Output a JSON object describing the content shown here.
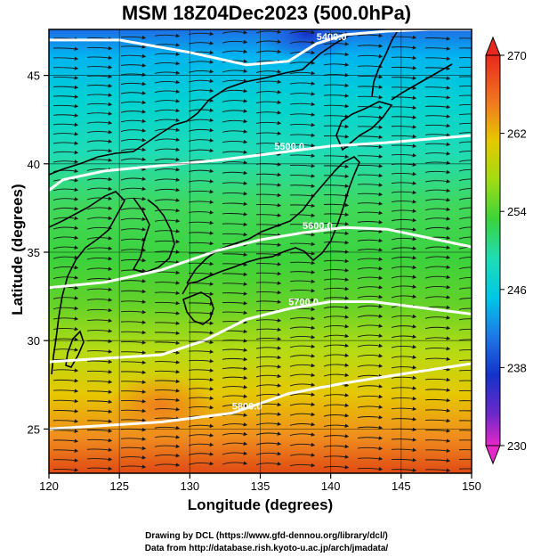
{
  "title": "MSM 18Z04Dec2023 (500.0hPa)",
  "x_axis": {
    "label": "Longitude (degrees)",
    "ticks": [
      "120",
      "125",
      "130",
      "135",
      "140",
      "145",
      "150"
    ]
  },
  "y_axis": {
    "label": "Latitude  (degrees)",
    "ticks": [
      "25",
      "30",
      "35",
      "40",
      "45"
    ]
  },
  "colorbar": {
    "ticks": [
      "270",
      "262",
      "254",
      "246",
      "238",
      "230"
    ]
  },
  "contours": {
    "labels": [
      "5400.0",
      "5500.0",
      "5600.0",
      "5700.0",
      "5800.0"
    ]
  },
  "credits": {
    "line1": "Drawing by DCL (https://www.gfd-dennou.org/library/dcl/)",
    "line2": "Data from http://database.rish.kyoto-u.ac.jp/arch/jmadata/"
  },
  "map_data": {
    "lon_range": [
      120,
      150
    ],
    "lat_range": [
      22.5,
      47.6
    ],
    "temperature_range_K": [
      230,
      270
    ],
    "colors": {
      "cold": "#1a3fd0",
      "cyan": "#00c8e6",
      "green": "#3cd23c",
      "yellow": "#e6c800",
      "orange": "#f07820",
      "red": "#d82010"
    },
    "height_contours": [
      {
        "label": "5400.0",
        "lon": [
          120,
          125,
          130,
          134,
          137,
          139,
          141,
          144,
          147,
          150
        ],
        "lat": [
          47.0,
          47.0,
          46.3,
          45.6,
          45.8,
          46.8,
          47.3,
          47.5,
          47.6,
          47.6
        ]
      },
      {
        "label": "5500.0",
        "lon": [
          120,
          121,
          124,
          128,
          132,
          136,
          140,
          144,
          147,
          150
        ],
        "lat": [
          38.5,
          39.1,
          39.6,
          39.9,
          40.2,
          40.6,
          41.0,
          41.2,
          41.4,
          41.6
        ]
      },
      {
        "label": "5600.0",
        "lon": [
          120,
          124,
          128,
          132,
          135,
          138,
          141,
          144,
          147,
          150
        ],
        "lat": [
          33.0,
          33.3,
          34.0,
          35.1,
          35.7,
          36.1,
          36.4,
          36.3,
          35.8,
          35.3
        ]
      },
      {
        "label": "5700.0",
        "lon": [
          120,
          124,
          128,
          131,
          134,
          137,
          140,
          143,
          146,
          150
        ],
        "lat": [
          28.8,
          29.0,
          29.2,
          30.0,
          31.2,
          31.8,
          32.2,
          32.2,
          31.9,
          31.5
        ]
      },
      {
        "label": "5800.0",
        "lon": [
          120,
          124,
          128,
          130,
          133,
          137,
          141,
          145,
          150
        ],
        "lat": [
          25.0,
          25.2,
          25.4,
          25.6,
          25.9,
          27.0,
          27.6,
          28.1,
          28.7
        ]
      }
    ]
  }
}
